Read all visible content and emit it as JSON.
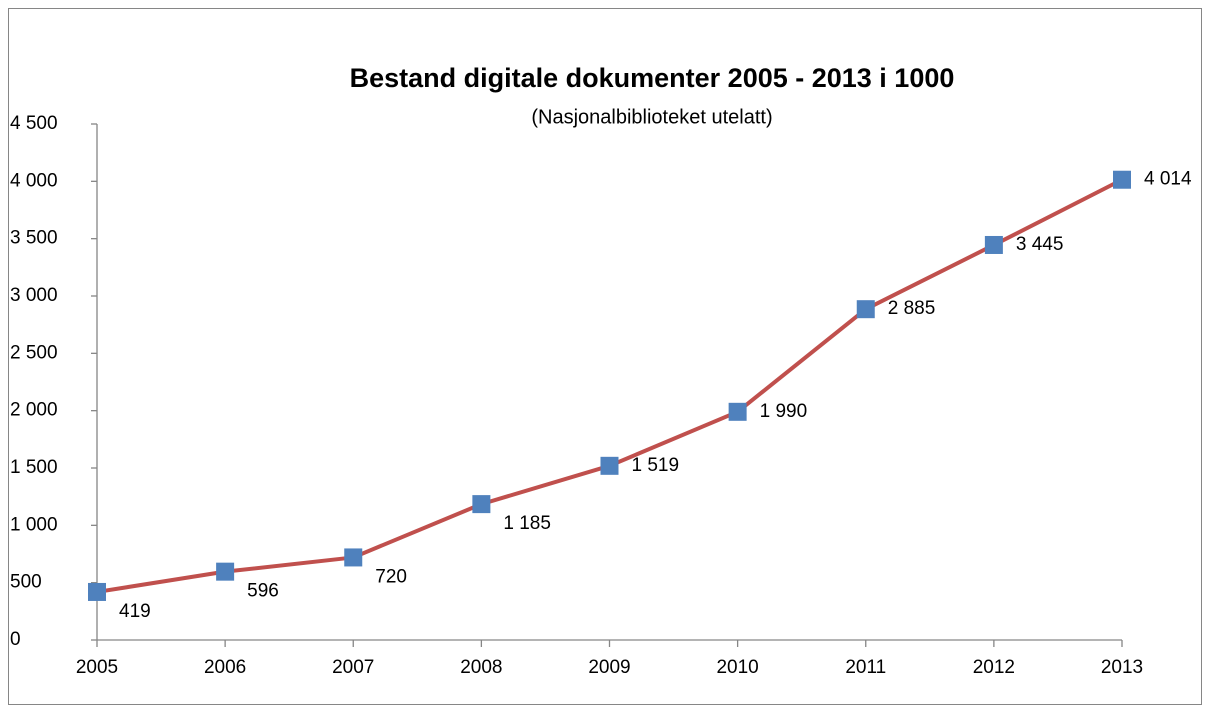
{
  "chart_data": {
    "type": "line",
    "title": "Bestand digitale dokumenter 2005 - 2013 i 1000",
    "subtitle": "(Nasjonalbiblioteket utelatt)",
    "categories": [
      "2005",
      "2006",
      "2007",
      "2008",
      "2009",
      "2010",
      "2011",
      "2012",
      "2013"
    ],
    "series": [
      {
        "name": "Bestand",
        "color": "#c0504d",
        "marker_color": "#4f81bd",
        "values": [
          419,
          596,
          720,
          1185,
          1519,
          1990,
          2885,
          3445,
          4014
        ],
        "value_labels": [
          "419",
          "596",
          "720",
          "1 185",
          "1 519",
          "1 990",
          "2 885",
          "3 445",
          "4 014"
        ]
      }
    ],
    "ylim": [
      0,
      4500
    ],
    "yticks": [
      0,
      500,
      {
        "value": 1000,
        "label": "1 000"
      },
      {
        "value": 1500,
        "label": "1 500"
      },
      {
        "value": 2000,
        "label": "2 000"
      },
      {
        "value": 2500,
        "label": "2 500"
      },
      {
        "value": 3000,
        "label": "3 000"
      },
      {
        "value": 3500,
        "label": "3 500"
      },
      {
        "value": 4000,
        "label": "4 000"
      },
      {
        "value": 4500,
        "label": "4 500"
      }
    ],
    "grid": false
  }
}
